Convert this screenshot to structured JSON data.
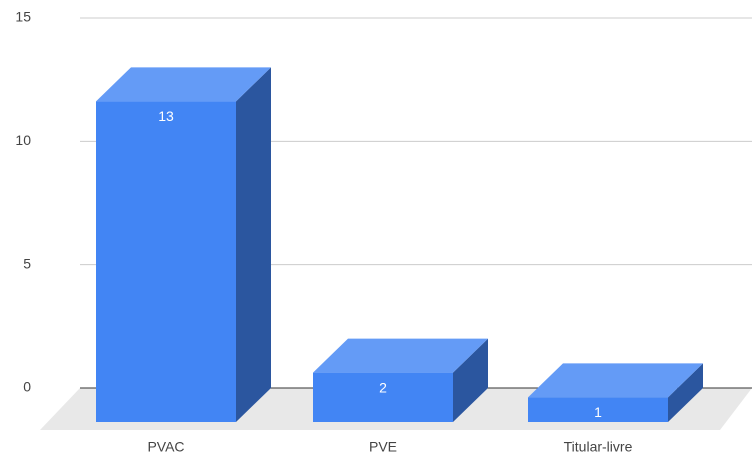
{
  "chart_data": {
    "type": "bar",
    "categories": [
      "PVAC",
      "PVE",
      "Titular-livre"
    ],
    "values": [
      13,
      2,
      1
    ],
    "color": "#4285f4",
    "ylim": [
      0,
      15
    ],
    "yticks": [
      0,
      5,
      10,
      15
    ],
    "grid": true
  }
}
